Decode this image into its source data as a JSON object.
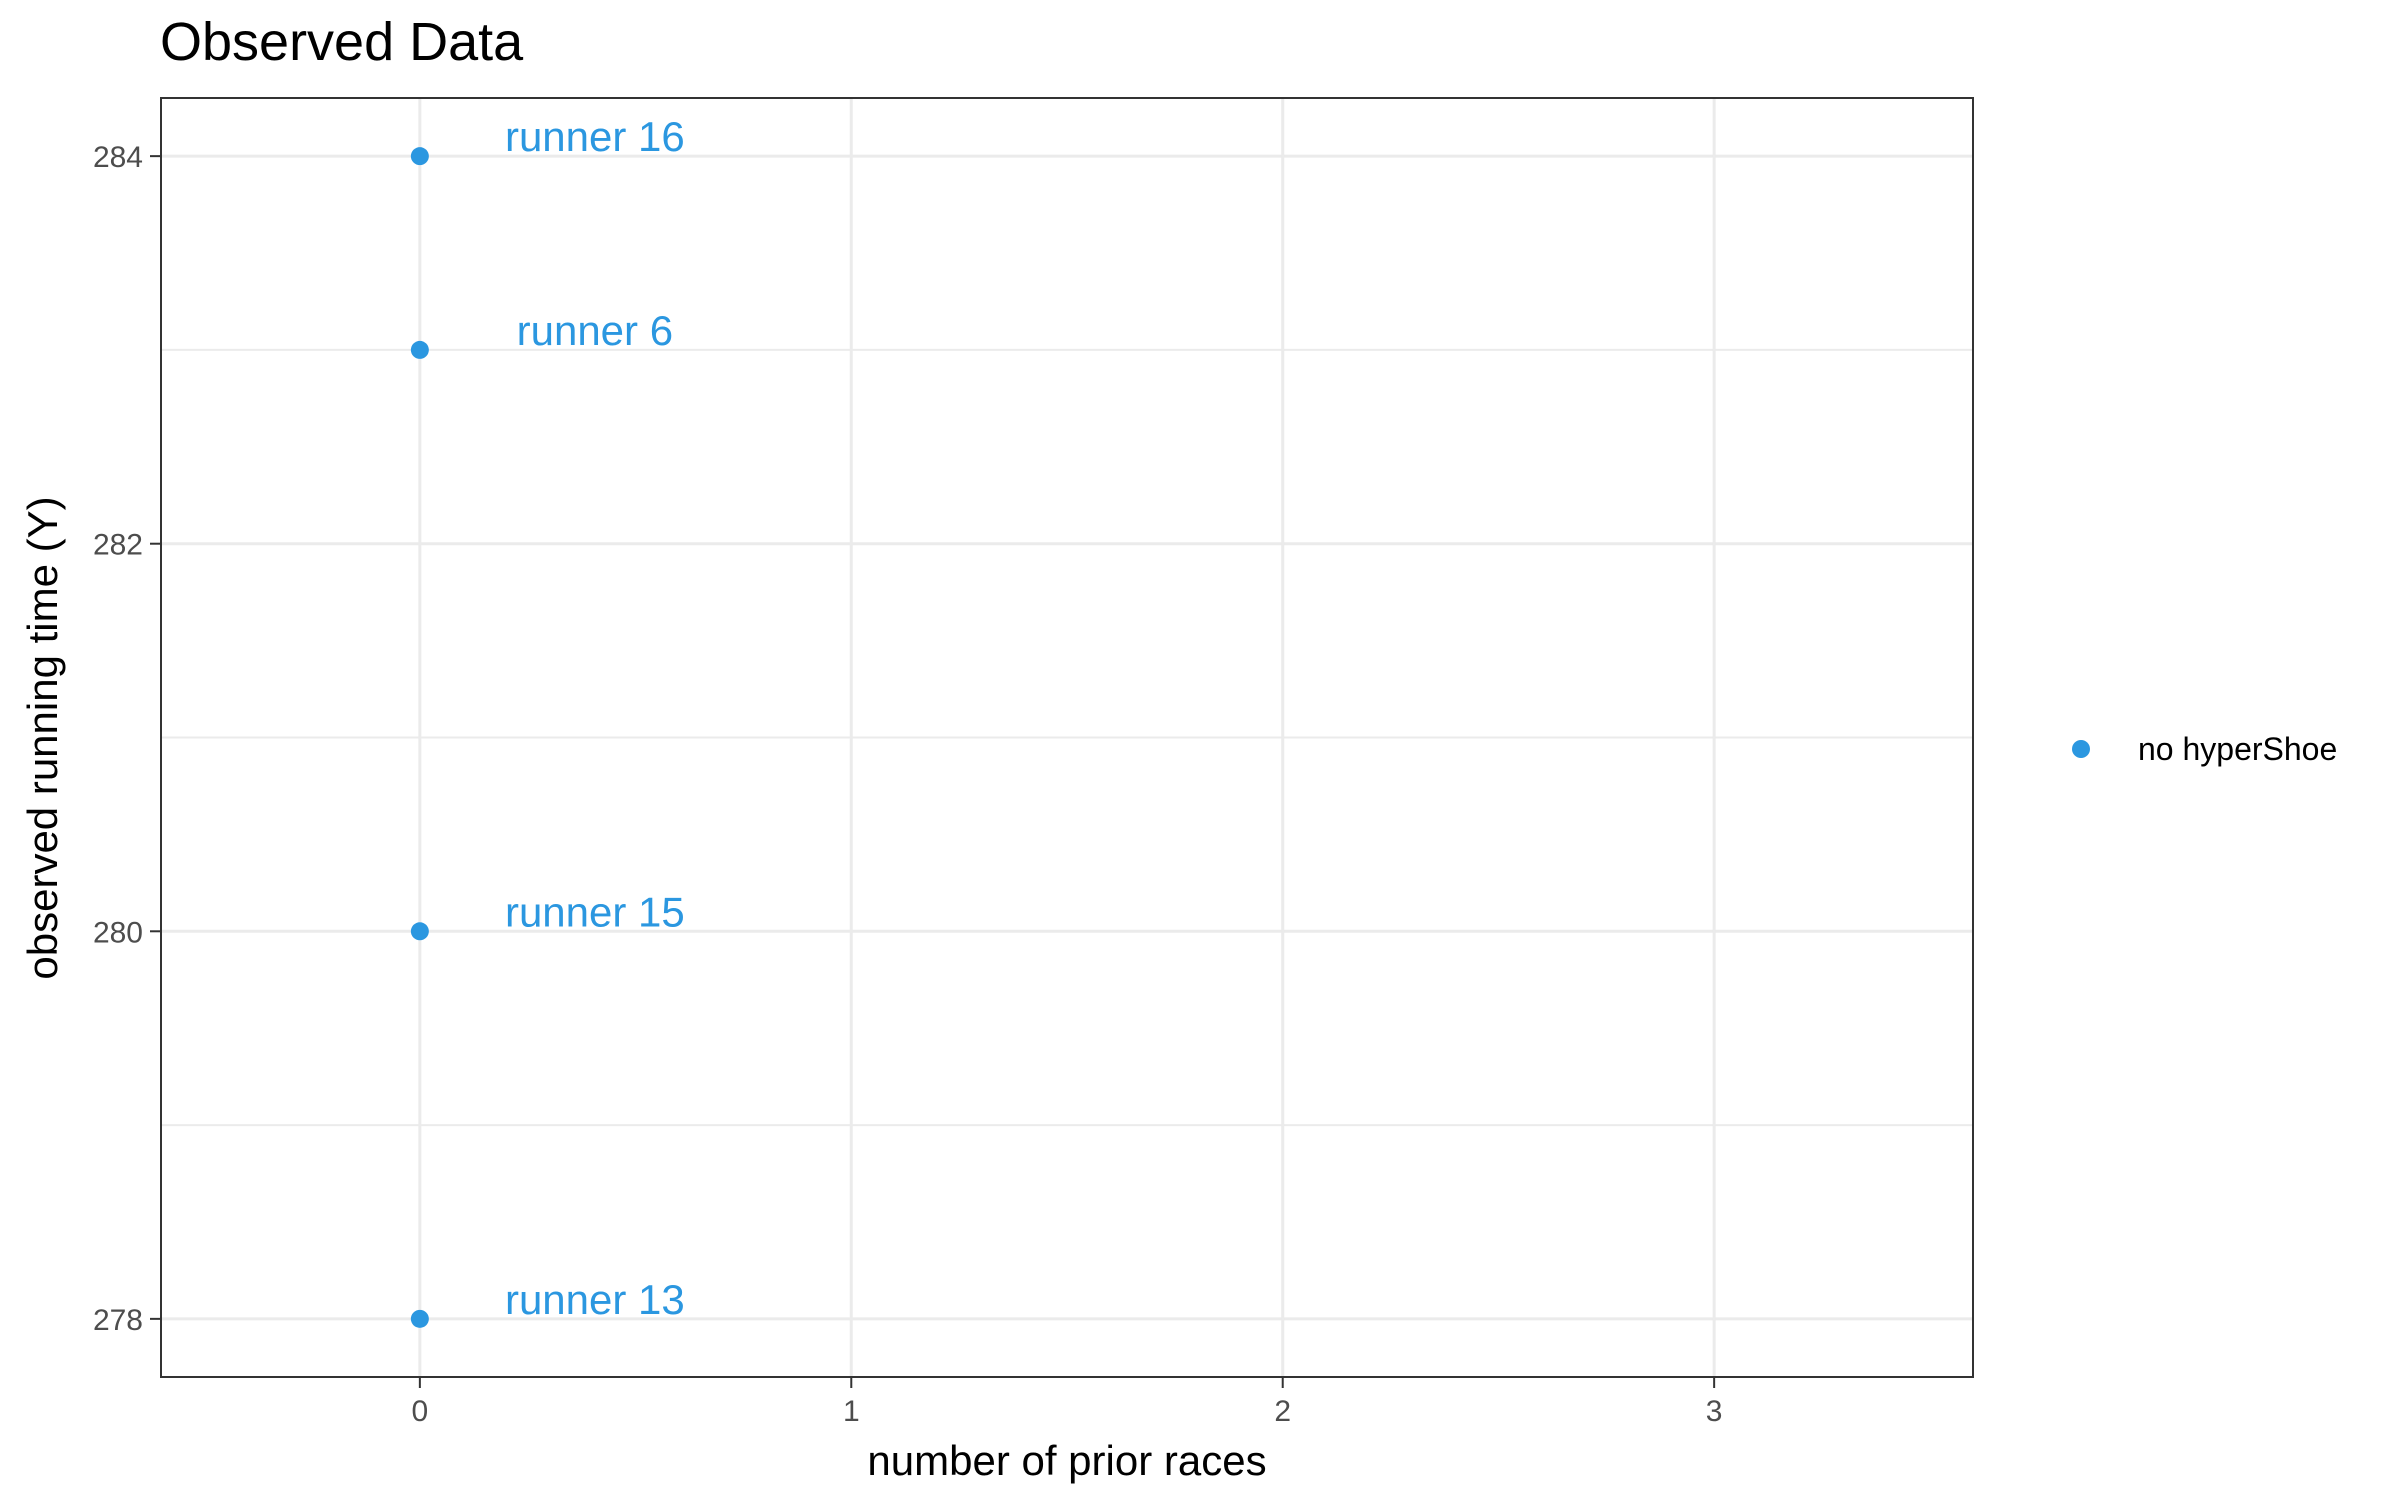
{
  "chart_data": {
    "type": "scatter",
    "title": "Observed Data",
    "xlabel": "number of prior races",
    "ylabel": "observed running time (Y)",
    "xlim": [
      -0.6,
      3.6
    ],
    "ylim": [
      277.7,
      284.3
    ],
    "x_ticks": [
      "0",
      "1",
      "2",
      "3"
    ],
    "y_ticks": [
      "278",
      "280",
      "282",
      "284"
    ],
    "grid": true,
    "legend_position": "right",
    "series": [
      {
        "name": "no hyperShoe",
        "color": "#2b97e0",
        "points": [
          {
            "x": 0,
            "y": 284,
            "label": "runner 16"
          },
          {
            "x": 0,
            "y": 283,
            "label": "runner 6"
          },
          {
            "x": 0,
            "y": 280,
            "label": "runner 15"
          },
          {
            "x": 0,
            "y": 278,
            "label": "runner 13"
          }
        ]
      }
    ]
  }
}
